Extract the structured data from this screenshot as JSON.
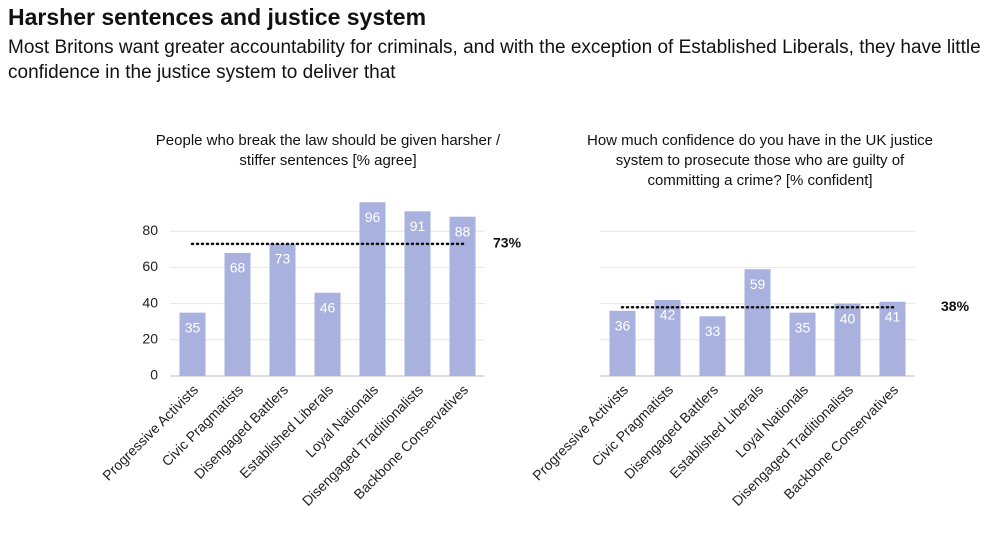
{
  "header": {
    "title": "Harsher sentences and justice system",
    "subtitle": "Most Britons want greater accountability for criminals, and with the exception of Established Liberals, they have little confidence in the justice system to deliver that"
  },
  "chart_data": [
    {
      "type": "bar",
      "title": "People who break the law should be given harsher / stiffer sentences [% agree]",
      "categories": [
        "Progressive Activists",
        "Civic Pragmatists",
        "Disengaged Battlers",
        "Established Liberals",
        "Loyal Nationals",
        "Disengaged Traditionalists",
        "Backbone Conservatives"
      ],
      "values": [
        35,
        68,
        73,
        46,
        96,
        91,
        88
      ],
      "color": "#a9b1de",
      "ylim": [
        0,
        100
      ],
      "yticks": [
        0,
        20,
        40,
        60,
        80
      ],
      "ytick_labels": true,
      "grid": true,
      "reference_line": {
        "value": 73,
        "label": "73%"
      }
    },
    {
      "type": "bar",
      "title": "How much confidence do you have in the UK justice system to prosecute those who are guilty of committing a crime? [% confident]",
      "categories": [
        "Progressive Activists",
        "Civic Pragmatists",
        "Disengaged Battlers",
        "Established Liberals",
        "Loyal Nationals",
        "Disengaged Traditionalists",
        "Backbone Conservatives"
      ],
      "values": [
        36,
        42,
        33,
        59,
        35,
        40,
        41
      ],
      "color": "#a9b1de",
      "ylim": [
        0,
        100
      ],
      "yticks": [
        0,
        20,
        40,
        60,
        80
      ],
      "ytick_labels": false,
      "grid": true,
      "reference_line": {
        "value": 38,
        "label": "38%"
      }
    }
  ]
}
